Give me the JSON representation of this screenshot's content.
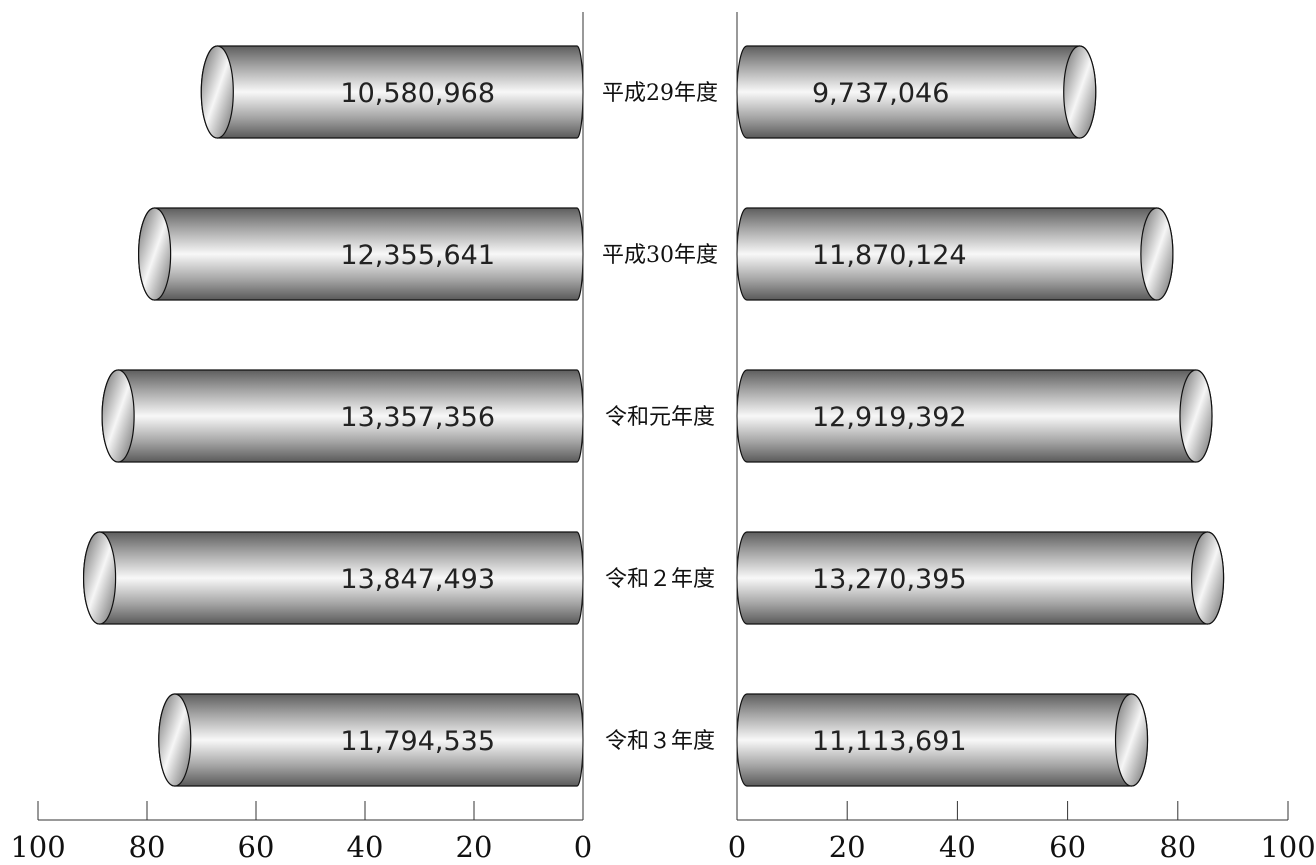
{
  "chart_data": {
    "type": "bar",
    "orientation": "horizontal",
    "layout": "back-to-back",
    "categories": [
      "平成29年度",
      "平成30年度",
      "令和元年度",
      "令和２年度",
      "令和３年度"
    ],
    "series": [
      {
        "side": "left",
        "values": [
          67.1,
          78.6,
          85.3,
          88.7,
          74.9
        ],
        "labels": [
          "10,580,968",
          "12,355,641",
          "13,357,356",
          "13,847,493",
          "11,794,535"
        ]
      },
      {
        "side": "right",
        "values": [
          62.2,
          76.2,
          83.3,
          85.4,
          71.6
        ],
        "labels": [
          "9,737,046",
          "11,870,124",
          "12,919,392",
          "13,270,395",
          "11,113,691"
        ]
      }
    ],
    "xlim": [
      0,
      100
    ],
    "left_axis_ticks": [
      "100",
      "80",
      "60",
      "40",
      "20",
      "0"
    ],
    "right_axis_ticks": [
      "0",
      "20",
      "40",
      "60",
      "80",
      "100"
    ],
    "bar_style": "3d-cylinder",
    "grid": false,
    "legend": "none"
  }
}
